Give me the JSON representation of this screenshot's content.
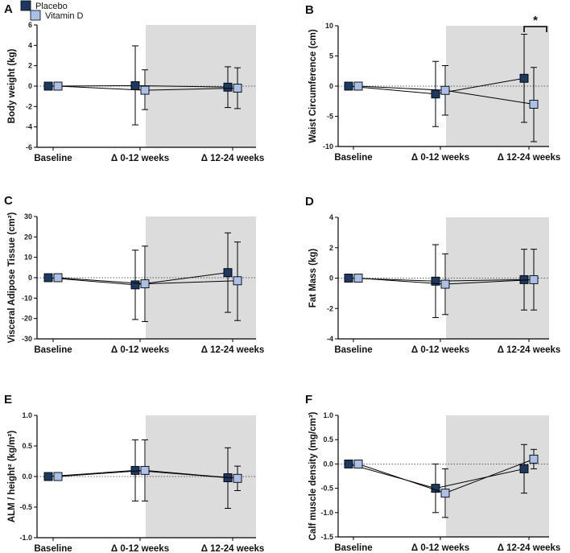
{
  "legend": {
    "placebo": "Placebo",
    "vitamin_d": "Vitamin D"
  },
  "colors": {
    "placebo": "#1b3a63",
    "vitamin_d": "#a9c0ea",
    "shade": "#dcdcdc"
  },
  "chart_data": [
    {
      "type": "scatter",
      "panel": "A",
      "ylabel": "Body weight (kg)",
      "categories": [
        "Baseline",
        "Δ 0-12 weeks",
        "Δ 12-24 weeks"
      ],
      "ylim": [
        -6,
        6
      ],
      "yticks": [
        "-6",
        "-4",
        "-2",
        "0",
        "2",
        "4",
        "6"
      ],
      "shaded_from_category": 1,
      "series": [
        {
          "name": "Placebo",
          "values": [
            0,
            0.05,
            -0.1
          ],
          "err_low": [
            0,
            -3.8,
            -2.1
          ],
          "err_high": [
            0,
            3.95,
            1.9
          ]
        },
        {
          "name": "Vitamin D",
          "values": [
            0,
            -0.4,
            -0.2
          ],
          "err_low": [
            0,
            -2.3,
            -2.2
          ],
          "err_high": [
            0,
            1.6,
            1.8
          ]
        }
      ]
    },
    {
      "type": "scatter",
      "panel": "B",
      "ylabel": "Waist Circumference (cm)",
      "categories": [
        "Baseline",
        "Δ 0-12 weeks",
        "Δ 12-24 weeks"
      ],
      "ylim": [
        -10,
        10
      ],
      "yticks": [
        "-10",
        "-5",
        "0",
        "5",
        "10"
      ],
      "shaded_from_category": 1,
      "significance": "*",
      "series": [
        {
          "name": "Placebo",
          "values": [
            0,
            -1.3,
            1.3
          ],
          "err_low": [
            0,
            -6.7,
            -6.0
          ],
          "err_high": [
            0,
            4.1,
            8.6
          ]
        },
        {
          "name": "Vitamin D",
          "values": [
            0,
            -0.7,
            -3.0
          ],
          "err_low": [
            0,
            -4.8,
            -9.2
          ],
          "err_high": [
            0,
            3.4,
            3.1
          ]
        }
      ]
    },
    {
      "type": "scatter",
      "panel": "C",
      "ylabel": "Visceral Adipose Tissue (cm²)",
      "categories": [
        "Baseline",
        "Δ 0-12 weeks",
        "Δ 12-24 weeks"
      ],
      "ylim": [
        -30,
        30
      ],
      "yticks": [
        "-30",
        "-20",
        "-10",
        "0",
        "10",
        "20",
        "30"
      ],
      "shaded_from_category": 1,
      "series": [
        {
          "name": "Placebo",
          "values": [
            0,
            -3.5,
            2.5
          ],
          "err_low": [
            0,
            -20.5,
            -17.0
          ],
          "err_high": [
            0,
            13.5,
            22.0
          ]
        },
        {
          "name": "Vitamin D",
          "values": [
            0,
            -3.0,
            -1.5
          ],
          "err_low": [
            0,
            -21.5,
            -21.0
          ],
          "err_high": [
            0,
            15.5,
            17.5
          ]
        }
      ]
    },
    {
      "type": "scatter",
      "panel": "D",
      "ylabel": "Fat Mass (kg)",
      "categories": [
        "Baseline",
        "Δ 0-12 weeks",
        "Δ 12-24 weeks"
      ],
      "ylim": [
        -4,
        4
      ],
      "yticks": [
        "-4",
        "-2",
        "0",
        "2",
        "4"
      ],
      "shaded_from_category": 1,
      "series": [
        {
          "name": "Placebo",
          "values": [
            0,
            -0.2,
            -0.1
          ],
          "err_low": [
            0,
            -2.6,
            -2.1
          ],
          "err_high": [
            0,
            2.2,
            1.9
          ]
        },
        {
          "name": "Vitamin D",
          "values": [
            0,
            -0.4,
            -0.1
          ],
          "err_low": [
            0,
            -2.4,
            -2.1
          ],
          "err_high": [
            0,
            1.6,
            1.9
          ]
        }
      ]
    },
    {
      "type": "scatter",
      "panel": "E",
      "ylabel": "ALM / height² (kg/m²)",
      "categories": [
        "Baseline",
        "Δ 0-12 weeks",
        "Δ 12-24 weeks"
      ],
      "ylim": [
        -1.0,
        1.0
      ],
      "yticks": [
        "-1.0",
        "-0.5",
        "0.0",
        "0.5",
        "1.0"
      ],
      "shaded_from_category": 1,
      "series": [
        {
          "name": "Placebo",
          "values": [
            0,
            0.1,
            -0.02
          ],
          "err_low": [
            0,
            -0.4,
            -0.52
          ],
          "err_high": [
            0,
            0.6,
            0.47
          ]
        },
        {
          "name": "Vitamin D",
          "values": [
            0,
            0.1,
            -0.03
          ],
          "err_low": [
            0,
            -0.4,
            -0.23
          ],
          "err_high": [
            0,
            0.6,
            0.17
          ]
        }
      ]
    },
    {
      "type": "scatter",
      "panel": "F",
      "ylabel": "Calf muscle density (mg/cm³)",
      "categories": [
        "Baseline",
        "Δ 0-12 weeks",
        "Δ 12-24 weeks"
      ],
      "ylim": [
        -1.5,
        1.0
      ],
      "yticks": [
        "-1.5",
        "-1.0",
        "-0.5",
        "0.0",
        "0.5",
        "1.0"
      ],
      "shaded_from_category": 1,
      "series": [
        {
          "name": "Placebo",
          "values": [
            0,
            -0.5,
            -0.1
          ],
          "err_low": [
            0,
            -1.0,
            -0.6
          ],
          "err_high": [
            0,
            0.0,
            0.4
          ]
        },
        {
          "name": "Vitamin D",
          "values": [
            0,
            -0.6,
            0.1
          ],
          "err_low": [
            0,
            -1.1,
            -0.1
          ],
          "err_high": [
            0,
            -0.1,
            0.3
          ]
        }
      ]
    }
  ]
}
